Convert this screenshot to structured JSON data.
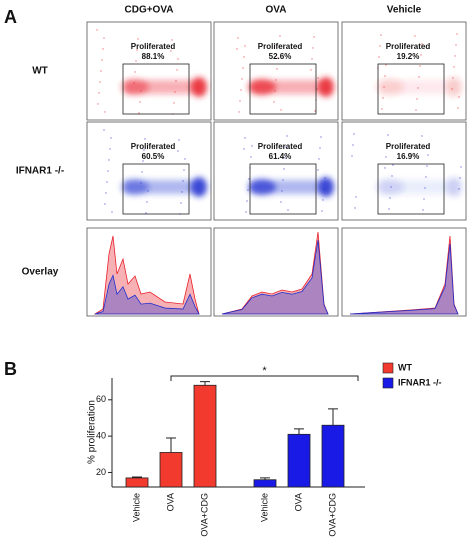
{
  "panel_a": {
    "label": "A",
    "columns": [
      "CDG+OVA",
      "OVA",
      "Vehicle"
    ],
    "rows": [
      {
        "name": "WT",
        "color": "#e8202a",
        "gate_label": "Proliferated",
        "values": [
          "88.1%",
          "52.6%",
          "19.2%"
        ]
      },
      {
        "name": "IFNAR1 -/-",
        "color": "#2030d0",
        "gate_label": "Proliferated",
        "values": [
          "60.5%",
          "61.4%",
          "16.9%"
        ]
      }
    ],
    "overlay_label": "Overlay"
  },
  "chart_data": {
    "type": "bar",
    "label": "B",
    "ylabel": "% proliferation",
    "categories": [
      "Vehicle",
      "OVA",
      "OVA+CDG"
    ],
    "series": [
      {
        "name": "WT",
        "color": "#f23a2e",
        "values": [
          17,
          31,
          68
        ],
        "errors": [
          0.5,
          8,
          2
        ]
      },
      {
        "name": "IFNAR1 -/-",
        "color": "#1a1ae6",
        "values": [
          16,
          41,
          46
        ],
        "errors": [
          1,
          3,
          9
        ]
      }
    ],
    "ylim": [
      12,
      72
    ],
    "yticks": [
      20,
      40,
      60
    ],
    "annotation": "*",
    "legend": "upper right"
  }
}
